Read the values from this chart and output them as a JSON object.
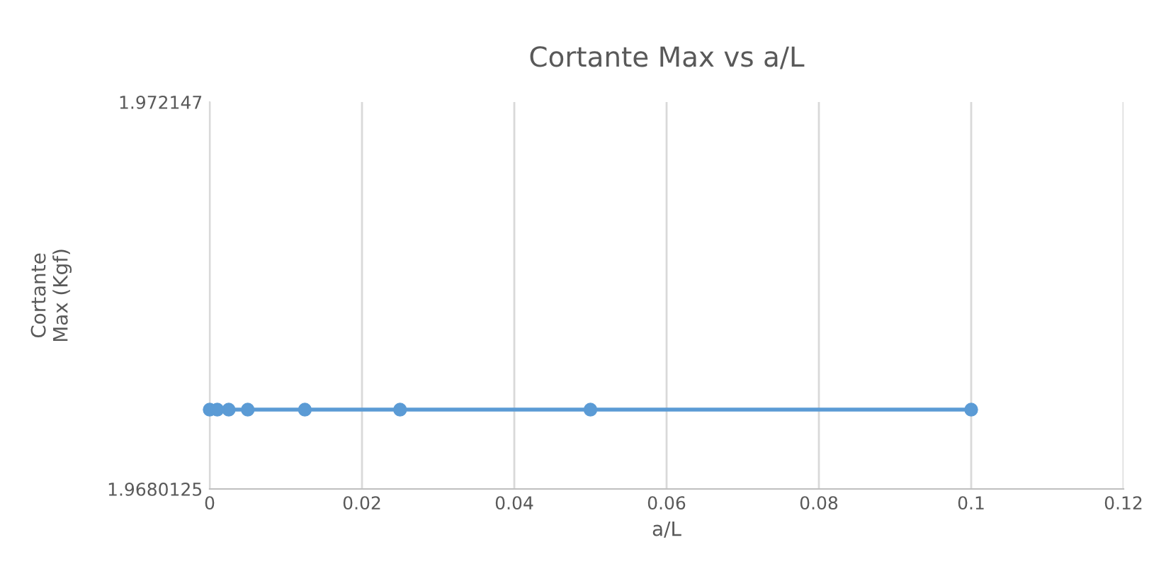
{
  "chart_data": {
    "type": "line",
    "title": "Cortante Max vs a/L",
    "xlabel": "a/L",
    "ylabel": "Cortante\nMax (Kgf)",
    "x": [
      0,
      0.001,
      0.0025,
      0.005,
      0.0125,
      0.025,
      0.05,
      0.1
    ],
    "series": [
      {
        "color": "#5b9bd5",
        "values": [
          1.96886,
          1.96886,
          1.96886,
          1.96886,
          1.96886,
          1.96886,
          1.96886,
          1.96886
        ]
      }
    ],
    "xlim": [
      0,
      0.12
    ],
    "xticks": [
      0,
      0.02,
      0.04,
      0.06,
      0.08,
      0.1,
      0.12
    ],
    "ylim": [
      1.9680125,
      1.972147
    ],
    "yticks": [
      {
        "value": 1.9680125,
        "label": "1.9680125"
      },
      {
        "value": 1.972147,
        "label": "1.972147"
      }
    ],
    "grid": "x",
    "marker": "circle",
    "line_style": "solid",
    "legend": false
  }
}
